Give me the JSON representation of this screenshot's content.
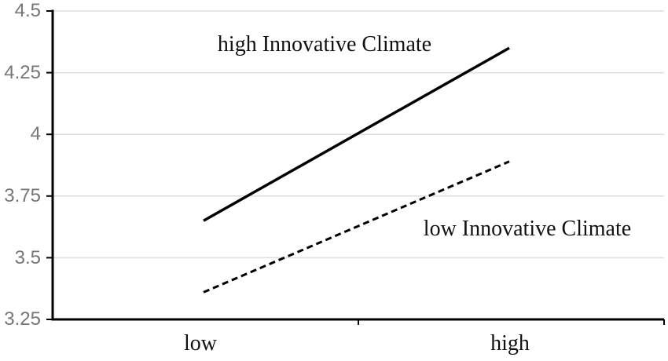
{
  "chart_data": {
    "type": "line",
    "title": "",
    "xlabel": "",
    "ylabel": "",
    "categories": [
      "low",
      "high"
    ],
    "series": [
      {
        "name": "high Innovative Climate",
        "values": [
          3.65,
          4.35
        ],
        "style": "solid",
        "color": "#000000"
      },
      {
        "name": "low Innovative Climate",
        "values": [
          3.36,
          3.89
        ],
        "style": "dashed",
        "color": "#000000"
      }
    ],
    "ylim": [
      3.25,
      4.5
    ],
    "yticks": [
      3.25,
      3.5,
      3.75,
      4,
      4.25,
      4.5
    ],
    "ytick_labels": [
      "3.25",
      "3.5",
      "3.75",
      "4",
      "4.25",
      "4.5"
    ],
    "grid": "horizontal",
    "legend_position": "inline-annotations",
    "annotations": [
      {
        "text": "high Innovative Climate",
        "anchor": "above-solid-line"
      },
      {
        "text": "low Innovative Climate",
        "anchor": "below-dashed-line"
      }
    ],
    "colors": {
      "line": "#000000",
      "axis": "#000000",
      "gridline": "#dedede",
      "ytick_label": "#767676",
      "xtick_label": "#111111",
      "background": "#ffffff"
    }
  }
}
